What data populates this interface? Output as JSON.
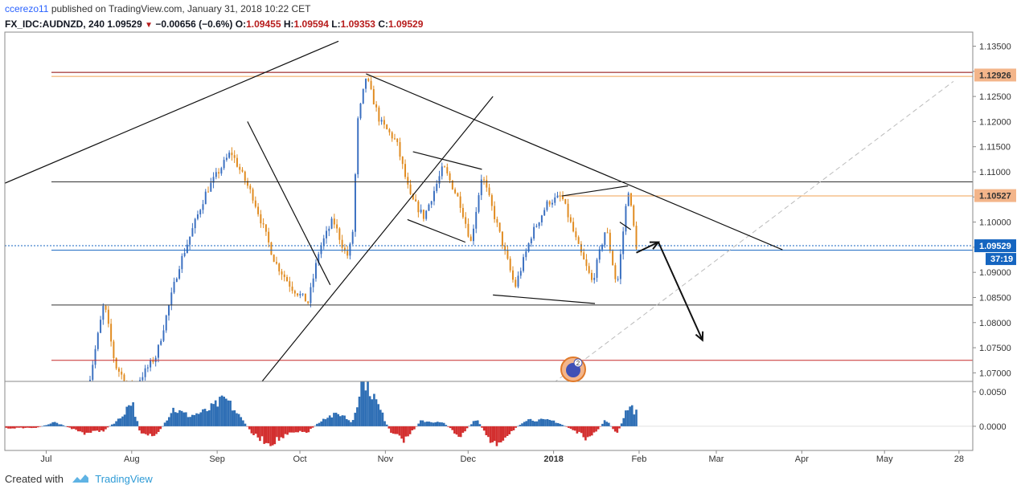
{
  "header": {
    "author": "ccerezo11",
    "published_text": "published on TradingView.com, January 31, 2018 10:22 CET",
    "symbol": "FX_IDC:AUDNZD, 240",
    "last_price": "1.09529",
    "change": "−0.00656 (−0.6%)",
    "open_label": "O:",
    "open_value": "1.09455",
    "high_label": "H:",
    "high_value": "1.09594",
    "low_label": "L:",
    "low_value": "1.09353",
    "close_label": "C:",
    "close_value": "1.09529"
  },
  "footer": {
    "created_with": "Created with",
    "brand": "TradingView"
  },
  "event_badge": "2",
  "colors": {
    "up": "#3a6fc0",
    "down": "#e08a1e",
    "price_line": "#1565c0",
    "resistance_red": "#c62828",
    "orange_level": "#f0a050",
    "hist_pos": "#2f6fb5",
    "hist_neg": "#d32f2f"
  },
  "chart_data": [
    {
      "type": "candlestick",
      "title": "",
      "x": [
        "Jul",
        "Aug",
        "Sep",
        "Oct",
        "Nov",
        "Dec",
        "2018",
        "Feb",
        "Mar",
        "Apr",
        "May",
        "28"
      ],
      "y_ticks": [
        "1.07000",
        "1.07500",
        "1.08000",
        "1.08500",
        "1.09000",
        "1.09500",
        "1.10000",
        "1.10500",
        "1.11000",
        "1.11500",
        "1.12000",
        "1.12500",
        "1.13000",
        "1.13500"
      ],
      "ylim": [
        1.0683,
        1.1378
      ],
      "path_points": [
        [
          "2017-07-15",
          1.0635
        ],
        [
          "2017-07-22",
          1.084
        ],
        [
          "2017-07-26",
          1.0715
        ],
        [
          "2017-08-01",
          1.0665
        ],
        [
          "2017-08-10",
          1.0735
        ],
        [
          "2017-08-18",
          1.091
        ],
        [
          "2017-08-28",
          1.106
        ],
        [
          "2017-09-06",
          1.114
        ],
        [
          "2017-09-14",
          1.105
        ],
        [
          "2017-09-22",
          1.092
        ],
        [
          "2017-09-28",
          1.087
        ],
        [
          "2017-10-04",
          1.084
        ],
        [
          "2017-10-08",
          1.0945
        ],
        [
          "2017-10-13",
          1.1005
        ],
        [
          "2017-10-18",
          1.093
        ],
        [
          "2017-10-20",
          1.0965
        ],
        [
          "2017-10-22",
          1.12
        ],
        [
          "2017-10-25",
          1.129
        ],
        [
          "2017-10-30",
          1.12
        ],
        [
          "2017-11-05",
          1.116
        ],
        [
          "2017-11-10",
          1.105
        ],
        [
          "2017-11-15",
          1.101
        ],
        [
          "2017-11-22",
          1.111
        ],
        [
          "2017-11-28",
          1.104
        ],
        [
          "2017-12-02",
          1.096
        ],
        [
          "2017-12-06",
          1.1095
        ],
        [
          "2017-12-12",
          1.0985
        ],
        [
          "2017-12-18",
          1.087
        ],
        [
          "2017-12-24",
          1.0975
        ],
        [
          "2017-12-30",
          1.104
        ],
        [
          "2018-01-04",
          1.105
        ],
        [
          "2018-01-10",
          1.095
        ],
        [
          "2018-01-15",
          1.088
        ],
        [
          "2018-01-20",
          1.099
        ],
        [
          "2018-01-24",
          1.087
        ],
        [
          "2018-01-28",
          1.107
        ],
        [
          "2018-01-31",
          1.0953
        ]
      ],
      "candle_count": 210,
      "levels": [
        {
          "price": 1.1298,
          "color": "#8b0000"
        },
        {
          "price": 1.0725,
          "color": "#c62828"
        },
        {
          "price": 1.108,
          "color": "#333333"
        },
        {
          "price": 1.0835,
          "color": "#333333"
        },
        {
          "price": 1.0944,
          "color": "#1565c0"
        },
        {
          "price": 1.129,
          "color": "#f0a050"
        },
        {
          "price": 1.1052,
          "color": "#f0a050"
        },
        {
          "price": 1.0953,
          "color": "#1565c0",
          "dotted": true
        }
      ],
      "price_labels": [
        {
          "price": 1.12926,
          "label": "1.12926",
          "style": "orange"
        },
        {
          "price": 1.10527,
          "label": "1.10527",
          "style": "orange"
        },
        {
          "price": 1.09529,
          "label": "1.09529",
          "style": "blue"
        }
      ],
      "countdown": "37:19",
      "trendlines": [
        [
          [
            "2017-06-15",
            1.1075
          ],
          [
            "2017-10-15",
            1.136
          ]
        ],
        [
          [
            "2017-10-25",
            1.1295
          ],
          [
            "2018-03-25",
            1.0945
          ]
        ],
        [
          [
            "2017-09-08",
            1.062
          ],
          [
            "2017-12-10",
            1.125
          ]
        ],
        [
          [
            "2017-09-12",
            1.12
          ],
          [
            "2017-10-12",
            1.0875
          ]
        ],
        [
          [
            "2017-11-11",
            1.114
          ],
          [
            "2017-12-06",
            1.1105
          ]
        ],
        [
          [
            "2017-11-09",
            1.1005
          ],
          [
            "2017-11-30",
            1.096
          ]
        ],
        [
          [
            "2017-12-10",
            1.0855
          ],
          [
            "2018-01-16",
            1.0838
          ]
        ],
        [
          [
            "2018-01-04",
            1.1052
          ],
          [
            "2018-01-28",
            1.1072
          ]
        ],
        [
          [
            "2018-01-25",
            1.1
          ],
          [
            "2018-01-29",
            1.0985
          ]
        ]
      ],
      "dashed_line": [
        [
          "2018-01-01",
          1.068
        ],
        [
          "2018-05-26",
          1.128
        ]
      ],
      "arrows": [
        [
          [
            "2018-01-31",
            1.0939
          ],
          [
            "2018-02-08",
            1.096
          ]
        ],
        [
          [
            "2018-02-08",
            1.096
          ],
          [
            "2018-02-24",
            1.0765
          ]
        ]
      ]
    },
    {
      "type": "histogram",
      "title": "",
      "y_ticks": [
        "0.0000",
        "0.0050"
      ],
      "ylim": [
        -0.0035,
        0.0065
      ],
      "profile": [
        [
          "2017-06-15",
          -0.0003
        ],
        [
          "2017-06-28",
          -0.0002
        ],
        [
          "2017-07-04",
          0.0006
        ],
        [
          "2017-07-10",
          -0.0003
        ],
        [
          "2017-07-15",
          -0.001
        ],
        [
          "2017-07-22",
          -0.0006
        ],
        [
          "2017-07-28",
          0.0012
        ],
        [
          "2017-08-01",
          0.0038
        ],
        [
          "2017-08-04",
          -0.0008
        ],
        [
          "2017-08-10",
          -0.0015
        ],
        [
          "2017-08-16",
          0.0025
        ],
        [
          "2017-08-22",
          0.0015
        ],
        [
          "2017-08-28",
          0.0022
        ],
        [
          "2017-09-04",
          0.004
        ],
        [
          "2017-09-10",
          0.001
        ],
        [
          "2017-09-14",
          -0.0012
        ],
        [
          "2017-09-20",
          -0.0025
        ],
        [
          "2017-09-28",
          -0.001
        ],
        [
          "2017-10-04",
          -0.0008
        ],
        [
          "2017-10-10",
          0.0013
        ],
        [
          "2017-10-16",
          0.0018
        ],
        [
          "2017-10-20",
          0.0005
        ],
        [
          "2017-10-24",
          0.0075
        ],
        [
          "2017-10-30",
          0.0025
        ],
        [
          "2017-11-03",
          -0.001
        ],
        [
          "2017-11-08",
          -0.002
        ],
        [
          "2017-11-14",
          0.0008
        ],
        [
          "2017-11-22",
          0.0005
        ],
        [
          "2017-11-28",
          -0.0015
        ],
        [
          "2017-12-04",
          0.0012
        ],
        [
          "2017-12-10",
          -0.003
        ],
        [
          "2017-12-16",
          -0.001
        ],
        [
          "2017-12-22",
          0.001
        ],
        [
          "2018-01-01",
          0.0008
        ],
        [
          "2018-01-08",
          -0.0005
        ],
        [
          "2018-01-14",
          -0.002
        ],
        [
          "2018-01-20",
          0.001
        ],
        [
          "2018-01-24",
          -0.0012
        ],
        [
          "2018-01-28",
          0.003
        ],
        [
          "2018-01-31",
          0.002
        ]
      ]
    }
  ]
}
